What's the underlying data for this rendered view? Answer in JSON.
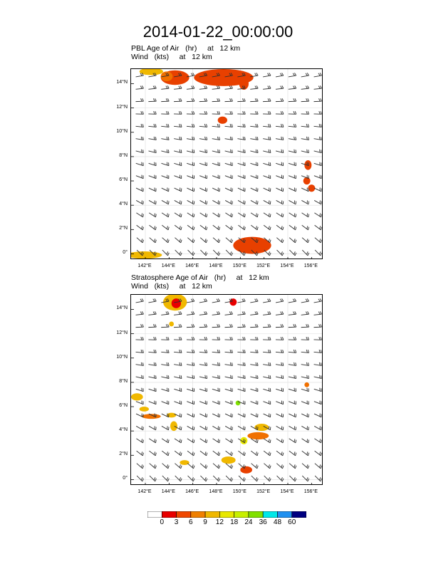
{
  "title": "2014-01-22_00:00:00",
  "chart_data": [
    {
      "type": "heatmap",
      "name": "pbl",
      "title_line1": "PBL Age of Air   (hr)     at   12 km",
      "title_line2": "Wind   (kts)     at   12 km",
      "ylim": [
        -0.5,
        15.2
      ],
      "xlim": [
        140.8,
        157.0
      ],
      "y_ticks": [
        0,
        2,
        4,
        6,
        8,
        10,
        12,
        14
      ],
      "y_tick_labels": [
        "0°",
        "2°N",
        "4°N",
        "6°N",
        "8°N",
        "10°N",
        "12°N",
        "14°N"
      ],
      "x_ticks": [
        142,
        144,
        146,
        148,
        150,
        152,
        154,
        156
      ],
      "x_tick_labels": [
        "142°E",
        "144°E",
        "146°E",
        "148°E",
        "150°E",
        "152°E",
        "154°E",
        "156°E"
      ],
      "blobs": [
        {
          "lon": 142.5,
          "lat": 15.0,
          "rx": 1.0,
          "ry": 0.3,
          "color": "#f0b800"
        },
        {
          "lon": 144.5,
          "lat": 14.5,
          "rx": 1.2,
          "ry": 0.6,
          "color": "#e84000"
        },
        {
          "lon": 143.8,
          "lat": 14.6,
          "rx": 0.5,
          "ry": 0.4,
          "color": "#f07000"
        },
        {
          "lon": 148.6,
          "lat": 14.5,
          "rx": 2.5,
          "ry": 0.7,
          "color": "#e84000"
        },
        {
          "lon": 150.3,
          "lat": 14.0,
          "rx": 0.4,
          "ry": 0.5,
          "color": "#e84000"
        },
        {
          "lon": 148.5,
          "lat": 11.0,
          "rx": 0.4,
          "ry": 0.3,
          "color": "#e84000"
        },
        {
          "lon": 155.7,
          "lat": 7.3,
          "rx": 0.3,
          "ry": 0.4,
          "color": "#e84000"
        },
        {
          "lon": 155.6,
          "lat": 6.0,
          "rx": 0.3,
          "ry": 0.3,
          "color": "#e84000"
        },
        {
          "lon": 156.0,
          "lat": 5.4,
          "rx": 0.3,
          "ry": 0.3,
          "color": "#e84000"
        },
        {
          "lon": 151.0,
          "lat": 0.7,
          "rx": 1.6,
          "ry": 0.7,
          "color": "#e84000"
        },
        {
          "lon": 141.9,
          "lat": -0.1,
          "rx": 1.5,
          "ry": 0.3,
          "color": "#f0b800"
        }
      ]
    },
    {
      "type": "heatmap",
      "name": "strat",
      "title_line1": "Stratosphere Age of Air   (hr)     at   12 km",
      "title_line2": "Wind   (kts)     at   12 km",
      "ylim": [
        -0.5,
        15.2
      ],
      "xlim": [
        140.8,
        157.0
      ],
      "y_ticks": [
        0,
        2,
        4,
        6,
        8,
        10,
        12,
        14
      ],
      "y_tick_labels": [
        "0°",
        "2°N",
        "4°N",
        "6°N",
        "8°N",
        "10°N",
        "12°N",
        "14°N"
      ],
      "x_ticks": [
        142,
        144,
        146,
        148,
        150,
        152,
        154,
        156
      ],
      "x_tick_labels": [
        "142°E",
        "144°E",
        "146°E",
        "148°E",
        "150°E",
        "152°E",
        "154°E",
        "156°E"
      ],
      "blobs": [
        {
          "lon": 144.5,
          "lat": 14.6,
          "rx": 1.0,
          "ry": 0.7,
          "color": "#f0b800"
        },
        {
          "lon": 144.6,
          "lat": 14.5,
          "rx": 0.4,
          "ry": 0.4,
          "color": "#e80000"
        },
        {
          "lon": 149.4,
          "lat": 14.6,
          "rx": 0.3,
          "ry": 0.3,
          "color": "#e80000"
        },
        {
          "lon": 144.2,
          "lat": 12.8,
          "rx": 0.2,
          "ry": 0.2,
          "color": "#f0b800"
        },
        {
          "lon": 141.3,
          "lat": 6.8,
          "rx": 0.5,
          "ry": 0.3,
          "color": "#f0b800"
        },
        {
          "lon": 141.9,
          "lat": 5.8,
          "rx": 0.4,
          "ry": 0.2,
          "color": "#f0b800"
        },
        {
          "lon": 142.5,
          "lat": 5.2,
          "rx": 0.8,
          "ry": 0.2,
          "color": "#f07000"
        },
        {
          "lon": 144.2,
          "lat": 5.3,
          "rx": 0.4,
          "ry": 0.2,
          "color": "#f0b800"
        },
        {
          "lon": 144.4,
          "lat": 4.4,
          "rx": 0.3,
          "ry": 0.4,
          "color": "#f0b800"
        },
        {
          "lon": 149.8,
          "lat": 6.3,
          "rx": 0.2,
          "ry": 0.2,
          "color": "#80e000"
        },
        {
          "lon": 151.8,
          "lat": 4.3,
          "rx": 0.6,
          "ry": 0.3,
          "color": "#f0b800"
        },
        {
          "lon": 151.5,
          "lat": 3.6,
          "rx": 0.9,
          "ry": 0.3,
          "color": "#f07000"
        },
        {
          "lon": 150.3,
          "lat": 3.2,
          "rx": 0.3,
          "ry": 0.3,
          "color": "#e8e800"
        },
        {
          "lon": 145.3,
          "lat": 1.4,
          "rx": 0.4,
          "ry": 0.2,
          "color": "#f0b800"
        },
        {
          "lon": 149.0,
          "lat": 1.6,
          "rx": 0.6,
          "ry": 0.3,
          "color": "#f0b800"
        },
        {
          "lon": 150.5,
          "lat": 0.8,
          "rx": 0.5,
          "ry": 0.3,
          "color": "#e84000"
        },
        {
          "lon": 155.6,
          "lat": 7.8,
          "rx": 0.2,
          "ry": 0.2,
          "color": "#f07000"
        }
      ]
    }
  ],
  "colorbar": {
    "colors": [
      "#ffffff",
      "#e80000",
      "#f04800",
      "#f08000",
      "#f0b800",
      "#e8e800",
      "#c8f000",
      "#80e000",
      "#00e8e8",
      "#2090f0",
      "#000080"
    ],
    "labels": [
      "0",
      "3",
      "6",
      "9",
      "12",
      "18",
      "24",
      "36",
      "48",
      "60"
    ]
  },
  "wind": {
    "color": "#303030",
    "cols": 15,
    "rows": 15
  }
}
